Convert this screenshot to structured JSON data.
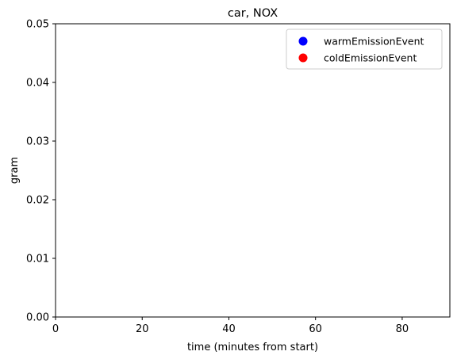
{
  "chart_data": {
    "type": "scatter",
    "title": "car, NOX",
    "xlabel": "time (minutes from start)",
    "ylabel": "gram",
    "xlim": [
      0,
      91
    ],
    "ylim": [
      0,
      0.05
    ],
    "xticks": [
      0,
      20,
      40,
      60,
      80
    ],
    "xtick_labels": [
      "0",
      "20",
      "40",
      "60",
      "80"
    ],
    "yticks": [
      0,
      0.01,
      0.02,
      0.03,
      0.04,
      0.05
    ],
    "ytick_labels": [
      "0.00",
      "0.01",
      "0.02",
      "0.03",
      "0.04",
      "0.05"
    ],
    "grid": false,
    "legend_position": "top-right",
    "series": [
      {
        "name": "warmEmissionEvent",
        "color": "#0000ff",
        "marker": "circle",
        "points": []
      },
      {
        "name": "coldEmissionEvent",
        "color": "#ff0000",
        "marker": "circle",
        "points": []
      }
    ]
  }
}
